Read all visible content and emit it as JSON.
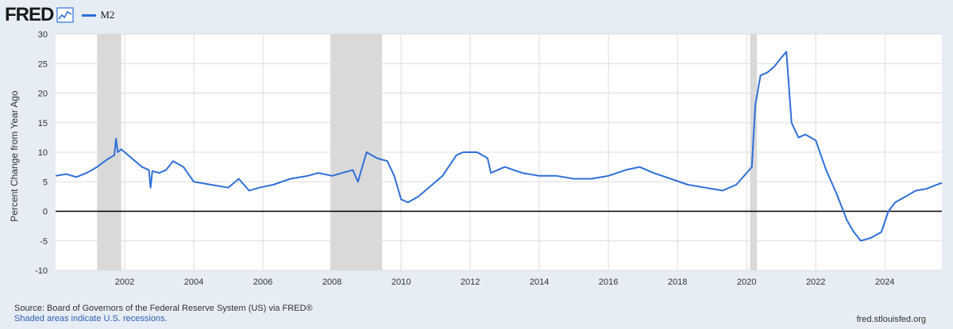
{
  "header": {
    "logo": "FRED",
    "legend_label": "M2"
  },
  "footer": {
    "source": "Source: Board of Governors of the Federal Reserve System (US) via FRED®",
    "recession_note": "Shaded areas indicate U.S. recessions.",
    "site": "fred.stlouisfed.org"
  },
  "colors": {
    "series": "#2f6fd8",
    "recession": "#d9d9d9",
    "zero_line": "#000000",
    "background": "#e6edf5",
    "plot_background": "#ffffff",
    "grid": "#dcdcdc"
  },
  "chart_data": {
    "type": "line",
    "title": "",
    "xlabel": "",
    "ylabel": "Percent Change from Year Ago",
    "xlim": [
      2000.0,
      2025.65
    ],
    "ylim": [
      -10,
      30
    ],
    "yticks": [
      30,
      25,
      20,
      15,
      10,
      5,
      0,
      -5,
      -10
    ],
    "xticks": [
      "2002",
      "2004",
      "2006",
      "2008",
      "2010",
      "2012",
      "2014",
      "2016",
      "2018",
      "2020",
      "2022",
      "2024"
    ],
    "grid": true,
    "legend": "top-left",
    "recessions": [
      [
        2001.2,
        2001.9
      ],
      [
        2007.95,
        2009.45
      ],
      [
        2020.1,
        2020.3
      ]
    ],
    "series": [
      {
        "name": "M2",
        "x": [
          2000.0,
          2000.3,
          2000.6,
          2000.9,
          2001.2,
          2001.5,
          2001.7,
          2001.75,
          2001.8,
          2001.9,
          2002.2,
          2002.5,
          2002.7,
          2002.75,
          2002.8,
          2003.0,
          2003.2,
          2003.4,
          2003.7,
          2004.0,
          2004.5,
          2005.0,
          2005.3,
          2005.6,
          2005.9,
          2006.3,
          2006.8,
          2007.3,
          2007.6,
          2008.0,
          2008.3,
          2008.6,
          2008.75,
          2009.0,
          2009.3,
          2009.6,
          2009.8,
          2010.0,
          2010.2,
          2010.5,
          2010.8,
          2011.2,
          2011.6,
          2011.8,
          2012.2,
          2012.5,
          2012.6,
          2013.0,
          2013.5,
          2014.0,
          2014.5,
          2015.0,
          2015.5,
          2016.0,
          2016.5,
          2016.9,
          2017.3,
          2017.8,
          2018.3,
          2018.8,
          2019.3,
          2019.7,
          2020.0,
          2020.15,
          2020.25,
          2020.4,
          2020.6,
          2020.8,
          2021.0,
          2021.15,
          2021.3,
          2021.5,
          2021.7,
          2022.0,
          2022.3,
          2022.6,
          2022.9,
          2023.1,
          2023.3,
          2023.6,
          2023.9,
          2024.1,
          2024.3,
          2024.6,
          2024.9,
          2025.2,
          2025.5,
          2025.65
        ],
        "values": [
          6.0,
          6.3,
          5.8,
          6.5,
          7.5,
          8.8,
          9.5,
          12.3,
          10.0,
          10.5,
          9.0,
          7.5,
          7.0,
          4.0,
          6.8,
          6.5,
          7.0,
          8.5,
          7.5,
          5.0,
          4.5,
          4.0,
          5.5,
          3.5,
          4.0,
          4.5,
          5.5,
          6.0,
          6.5,
          6.0,
          6.5,
          7.0,
          5.0,
          10.0,
          9.0,
          8.5,
          6.0,
          2.0,
          1.5,
          2.5,
          4.0,
          6.0,
          9.5,
          10.0,
          10.0,
          9.0,
          6.5,
          7.5,
          6.5,
          6.0,
          6.0,
          5.5,
          5.5,
          6.0,
          7.0,
          7.5,
          6.5,
          5.5,
          4.5,
          4.0,
          3.5,
          4.5,
          6.5,
          7.5,
          18.0,
          23.0,
          23.5,
          24.5,
          26.0,
          27.0,
          15.0,
          12.5,
          13.0,
          12.0,
          7.0,
          3.0,
          -1.5,
          -3.5,
          -5.0,
          -4.5,
          -3.5,
          0.0,
          1.5,
          2.5,
          3.5,
          3.8,
          4.5,
          4.8
        ]
      }
    ]
  }
}
